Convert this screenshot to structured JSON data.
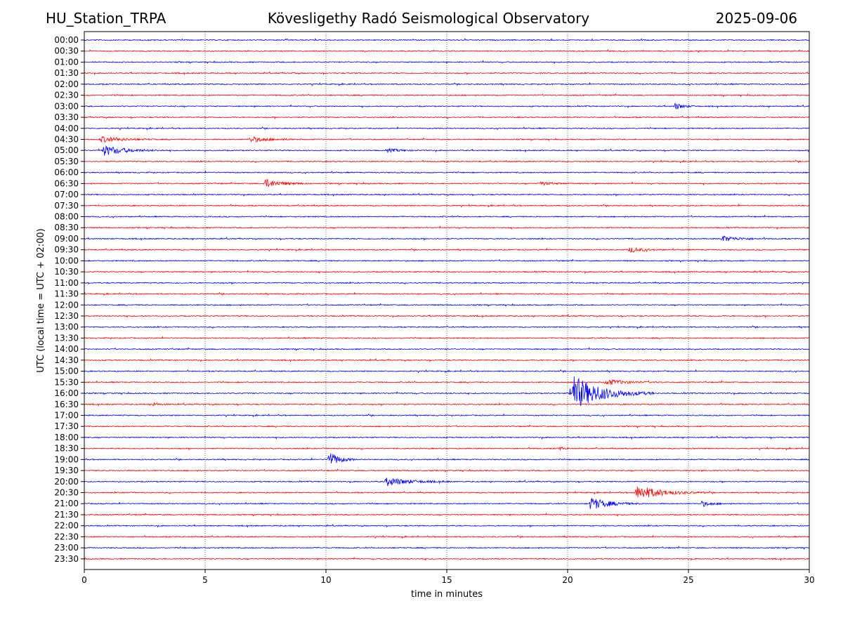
{
  "header": {
    "station": "HU_Station_TRPA",
    "observatory": "Kövesligethy Radó Seismological Observatory",
    "date": "2025-09-06"
  },
  "chart_data": {
    "type": "line",
    "chart_kind": "helicorder",
    "xlabel": "time in minutes",
    "ylabel": "UTC (local time = UTC + 02:00)",
    "xlim": [
      0,
      30
    ],
    "x_ticks": [
      0,
      5,
      10,
      15,
      20,
      25,
      30
    ],
    "vertical_gridlines_at": [
      5,
      10,
      15,
      20,
      25
    ],
    "row_colors": [
      "#0000ff",
      "#ff0000"
    ],
    "rows": [
      "00:00",
      "00:30",
      "01:00",
      "01:30",
      "02:00",
      "02:30",
      "03:00",
      "03:30",
      "04:00",
      "04:30",
      "05:00",
      "05:30",
      "06:00",
      "06:30",
      "07:00",
      "07:30",
      "08:00",
      "08:30",
      "09:00",
      "09:30",
      "10:00",
      "10:30",
      "11:00",
      "11:30",
      "12:00",
      "12:30",
      "13:00",
      "13:30",
      "14:00",
      "14:30",
      "15:00",
      "15:30",
      "16:00",
      "16:30",
      "17:00",
      "17:30",
      "18:00",
      "18:30",
      "19:00",
      "19:30",
      "20:00",
      "20:30",
      "21:00",
      "21:30",
      "22:00",
      "22:30",
      "23:00",
      "23:30"
    ],
    "events": [
      {
        "row": "03:00",
        "start": 24.4,
        "duration": 1.0,
        "amplitude": 5
      },
      {
        "row": "04:30",
        "start": 0.6,
        "duration": 2.5,
        "amplitude": 4
      },
      {
        "row": "04:30",
        "start": 6.8,
        "duration": 2.2,
        "amplitude": 4
      },
      {
        "row": "05:00",
        "start": 0.7,
        "duration": 2.6,
        "amplitude": 7
      },
      {
        "row": "05:00",
        "start": 12.5,
        "duration": 1.5,
        "amplitude": 2.5
      },
      {
        "row": "06:30",
        "start": 7.4,
        "duration": 2.0,
        "amplitude": 6
      },
      {
        "row": "06:30",
        "start": 18.8,
        "duration": 1.5,
        "amplitude": 2.5
      },
      {
        "row": "09:00",
        "start": 26.3,
        "duration": 2.0,
        "amplitude": 4
      },
      {
        "row": "09:30",
        "start": 22.5,
        "duration": 1.5,
        "amplitude": 4
      },
      {
        "row": "15:30",
        "start": 21.5,
        "duration": 2.5,
        "amplitude": 4
      },
      {
        "row": "16:00",
        "start": 20.05,
        "duration": 3.5,
        "amplitude": 25
      },
      {
        "row": "19:00",
        "start": 10.05,
        "duration": 1.2,
        "amplitude": 12
      },
      {
        "row": "20:00",
        "start": 12.4,
        "duration": 2.8,
        "amplitude": 6
      },
      {
        "row": "20:30",
        "start": 22.75,
        "duration": 3.0,
        "amplitude": 10
      },
      {
        "row": "21:00",
        "start": 20.85,
        "duration": 2.2,
        "amplitude": 9
      },
      {
        "row": "21:00",
        "start": 25.5,
        "duration": 1.2,
        "amplitude": 4
      },
      {
        "row": "18:30",
        "start": 19.6,
        "duration": 0.5,
        "amplitude": 3
      },
      {
        "row": "16:30",
        "start": 2.8,
        "duration": 0.8,
        "amplitude": 2.5
      }
    ]
  }
}
